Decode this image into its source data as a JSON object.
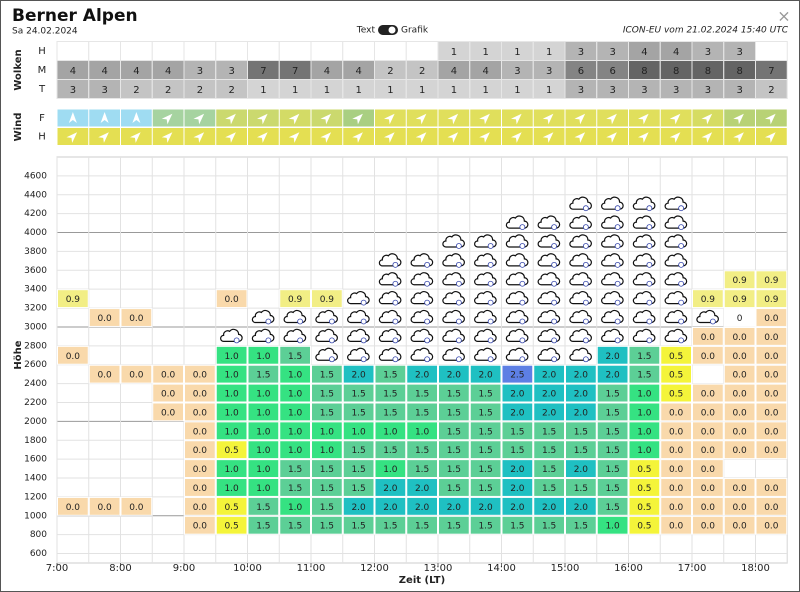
{
  "header": {
    "title": "Berner Alpen",
    "date": "Sa 24.02.2024",
    "toggle_left": "Text",
    "toggle_right": "Grafik",
    "model": "ICON-EU vom 21.02.2024 15:40 UTC",
    "close": "×"
  },
  "clouds": {
    "label": "Wolken",
    "rows": [
      {
        "label": "H",
        "values": [
          null,
          null,
          null,
          null,
          null,
          null,
          null,
          null,
          null,
          null,
          null,
          null,
          1,
          1,
          1,
          1,
          3,
          3,
          4,
          4,
          3,
          3,
          null
        ]
      },
      {
        "label": "M",
        "values": [
          4,
          4,
          4,
          4,
          3,
          3,
          7,
          7,
          4,
          4,
          2,
          2,
          4,
          4,
          3,
          3,
          6,
          6,
          8,
          8,
          8,
          8,
          7
        ]
      },
      {
        "label": "T",
        "values": [
          3,
          3,
          2,
          2,
          2,
          2,
          1,
          1,
          1,
          1,
          1,
          1,
          1,
          1,
          1,
          1,
          3,
          3,
          3,
          3,
          3,
          3,
          2
        ]
      }
    ]
  },
  "wind": {
    "label": "Wind",
    "rows": [
      {
        "label": "F",
        "colors": [
          "#9fdcf2",
          "#9fdcf2",
          "#9fdcf2",
          "#a6d3a0",
          "#a6d3a0",
          "#cbd96e",
          "#cbd96e",
          "#d3db66",
          "#cbd96e",
          "#a9cf82",
          "#e0df5c",
          "#e0df5c",
          "#e0df5c",
          "#e0df5c",
          "#e0df5c",
          "#e0df5c",
          "#e0df5c",
          "#e0df5c",
          "#e0df5c",
          "#e0df5c",
          "#d6dc62",
          "#b8d275",
          "#b8d275"
        ]
      },
      {
        "label": "H",
        "colors": [
          "#e4df52",
          "#e4df52",
          "#e4df52",
          "#e4df52",
          "#e4df52",
          "#e4df52",
          "#e4df52",
          "#e4df52",
          "#e4df52",
          "#e4df52",
          "#e4df52",
          "#e4df52",
          "#e4df52",
          "#e4df52",
          "#e4df52",
          "#e4df52",
          "#e4df52",
          "#e4df52",
          "#e4df52",
          "#e4df52",
          "#e4df52",
          "#e4df52",
          "#e4df52"
        ]
      }
    ]
  },
  "thermals": {
    "y_label": "Höhe",
    "x_label": "Zeit (LT)",
    "ylim": [
      500,
      4800
    ],
    "yticks": [
      600,
      800,
      1000,
      1200,
      1400,
      1600,
      1800,
      2000,
      2200,
      2400,
      2600,
      2800,
      3000,
      3200,
      3400,
      3600,
      3800,
      4000,
      4200,
      4400,
      4600
    ],
    "xlim": [
      7,
      18.5
    ],
    "xticks": [
      {
        "value": 7,
        "label": "7:00"
      },
      {
        "value": 8,
        "label": "8:00"
      },
      {
        "value": 9,
        "label": "9:00"
      },
      {
        "value": 10,
        "label": "10:00"
      },
      {
        "value": 11,
        "label": "11:00"
      },
      {
        "value": 12,
        "label": "12:00"
      },
      {
        "value": 13,
        "label": "13:00"
      },
      {
        "value": 14,
        "label": "14:00"
      },
      {
        "value": 15,
        "label": "15:00"
      },
      {
        "value": 16,
        "label": "16:00"
      },
      {
        "value": 17,
        "label": "17:00"
      },
      {
        "value": 18,
        "label": "18:00"
      }
    ],
    "colors": {
      "0": "#ffffff",
      "0.0": "#f9d9ab",
      "0.5": "#f4f43a",
      "0.9": "#f2ee85",
      "1.0": "#35e282",
      "1.5": "#5ccf96",
      "2.0": "#1fc0c2",
      "2.5": "#5d7fe4"
    },
    "rows": [
      {
        "altitude": 3500,
        "cells": [
          null,
          null,
          null,
          null,
          null,
          null,
          null,
          null,
          null,
          null,
          null,
          null,
          null,
          null,
          null,
          null,
          null,
          null,
          null,
          null,
          null,
          "0.9",
          "0.9"
        ]
      },
      {
        "altitude": 3300,
        "cells": [
          "0.9",
          null,
          null,
          null,
          null,
          "0.0",
          null,
          "0.9",
          "0.9",
          null,
          null,
          null,
          null,
          null,
          null,
          null,
          null,
          null,
          null,
          null,
          "0.9",
          "0.9",
          "0.9"
        ]
      },
      {
        "altitude": 3100,
        "cells": [
          null,
          "0.0",
          "0.0",
          null,
          null,
          null,
          null,
          null,
          null,
          null,
          null,
          null,
          null,
          null,
          null,
          null,
          null,
          null,
          null,
          null,
          null,
          "0",
          "0.0"
        ]
      },
      {
        "altitude": 2900,
        "cells": [
          null,
          null,
          null,
          null,
          null,
          null,
          null,
          null,
          null,
          null,
          null,
          null,
          null,
          null,
          null,
          null,
          null,
          null,
          null,
          null,
          "0.0",
          "0.0",
          "0.0"
        ]
      },
      {
        "altitude": 2700,
        "cells": [
          "0.0",
          null,
          null,
          null,
          null,
          "1.0",
          "1.0",
          "1.5",
          null,
          null,
          null,
          null,
          null,
          null,
          null,
          null,
          null,
          "2.0",
          "1.5",
          "0.5",
          "0.0",
          "0.0",
          "0.0"
        ]
      },
      {
        "altitude": 2500,
        "cells": [
          null,
          "0.0",
          "0.0",
          "0.0",
          "0.0",
          "1.0",
          "1.5",
          "1.0",
          "1.5",
          "2.0",
          "1.5",
          "2.0",
          "2.0",
          "2.0",
          "2.5",
          "2.0",
          "2.0",
          "2.0",
          "1.5",
          "0.5",
          null,
          "0.0",
          "0.0"
        ]
      },
      {
        "altitude": 2300,
        "cells": [
          null,
          null,
          null,
          "0.0",
          "0.0",
          "1.0",
          "1.0",
          "1.0",
          "1.5",
          "1.5",
          "1.5",
          "1.5",
          "1.5",
          "1.5",
          "2.0",
          "2.0",
          "2.0",
          "1.5",
          "1.0",
          "0.5",
          "0.0",
          "0.0",
          "0.0"
        ]
      },
      {
        "altitude": 2100,
        "cells": [
          null,
          null,
          null,
          "0.0",
          "0.0",
          "1.0",
          "1.0",
          "1.0",
          "1.5",
          "1.5",
          "1.5",
          "1.5",
          "1.5",
          "1.5",
          "2.0",
          "2.0",
          "2.0",
          "1.5",
          "1.0",
          "0.0",
          "0.0",
          "0.0",
          "0.0"
        ]
      },
      {
        "altitude": 1900,
        "cells": [
          null,
          null,
          null,
          null,
          "0.0",
          "1.0",
          "1.0",
          "1.0",
          "1.0",
          "1.0",
          "1.0",
          "1.0",
          "1.5",
          "1.5",
          "1.5",
          "1.5",
          "1.5",
          "1.5",
          "1.0",
          "0.0",
          "0.0",
          "0.0",
          "0.0"
        ]
      },
      {
        "altitude": 1700,
        "cells": [
          null,
          null,
          null,
          null,
          "0.0",
          "0.5",
          "1.0",
          "1.0",
          "1.0",
          "1.5",
          "1.5",
          "1.5",
          "1.5",
          "1.5",
          "1.5",
          "1.5",
          "1.5",
          "1.5",
          "1.0",
          "0.0",
          "0.0",
          "0.0",
          "0.0"
        ]
      },
      {
        "altitude": 1500,
        "cells": [
          null,
          null,
          null,
          null,
          "0.0",
          "1.0",
          "1.0",
          "1.5",
          "1.5",
          "1.5",
          "1.0",
          "1.5",
          "1.5",
          "1.5",
          "2.0",
          "1.5",
          "2.0",
          "1.5",
          "0.5",
          "0.0",
          "0.0",
          null,
          null
        ]
      },
      {
        "altitude": 1300,
        "cells": [
          null,
          null,
          null,
          null,
          "0.0",
          "1.0",
          "1.0",
          "1.5",
          "1.5",
          "1.5",
          "2.0",
          "2.0",
          "1.5",
          "1.5",
          "2.0",
          "1.5",
          "1.5",
          "1.5",
          "0.5",
          "0.0",
          "0.0",
          "0.0",
          "0.0"
        ]
      },
      {
        "altitude": 1100,
        "cells": [
          "0.0",
          "0.0",
          "0.0",
          null,
          "0.0",
          "0.5",
          "1.5",
          "1.0",
          "1.5",
          "2.0",
          "2.0",
          "2.0",
          "2.0",
          "2.0",
          "2.0",
          "2.0",
          "2.0",
          "1.5",
          "0.5",
          "0.0",
          "0.0",
          "0.0",
          "0.0"
        ]
      },
      {
        "altitude": 900,
        "cells": [
          null,
          null,
          null,
          null,
          "0.0",
          "0.5",
          "1.5",
          "1.5",
          "1.5",
          "1.5",
          "1.5",
          "1.5",
          "1.5",
          "1.5",
          "1.5",
          "1.5",
          "1.5",
          "1.0",
          "0.5",
          "0.0",
          "0.0",
          "0.0",
          "0.0"
        ]
      }
    ],
    "cloud_icons": [
      null,
      null,
      null,
      null,
      null,
      [
        2900,
        2900
      ],
      [
        2900,
        3100
      ],
      [
        2900,
        3100
      ],
      [
        2700,
        3100
      ],
      [
        2700,
        3300
      ],
      [
        2700,
        3700
      ],
      [
        2700,
        3700
      ],
      [
        2700,
        3900
      ],
      [
        2700,
        3900
      ],
      [
        2700,
        4100
      ],
      [
        2700,
        4100
      ],
      [
        2700,
        4300
      ],
      [
        2900,
        4300
      ],
      [
        2900,
        4300
      ],
      [
        2900,
        4300
      ],
      [
        3100,
        3100
      ],
      null,
      null
    ]
  }
}
